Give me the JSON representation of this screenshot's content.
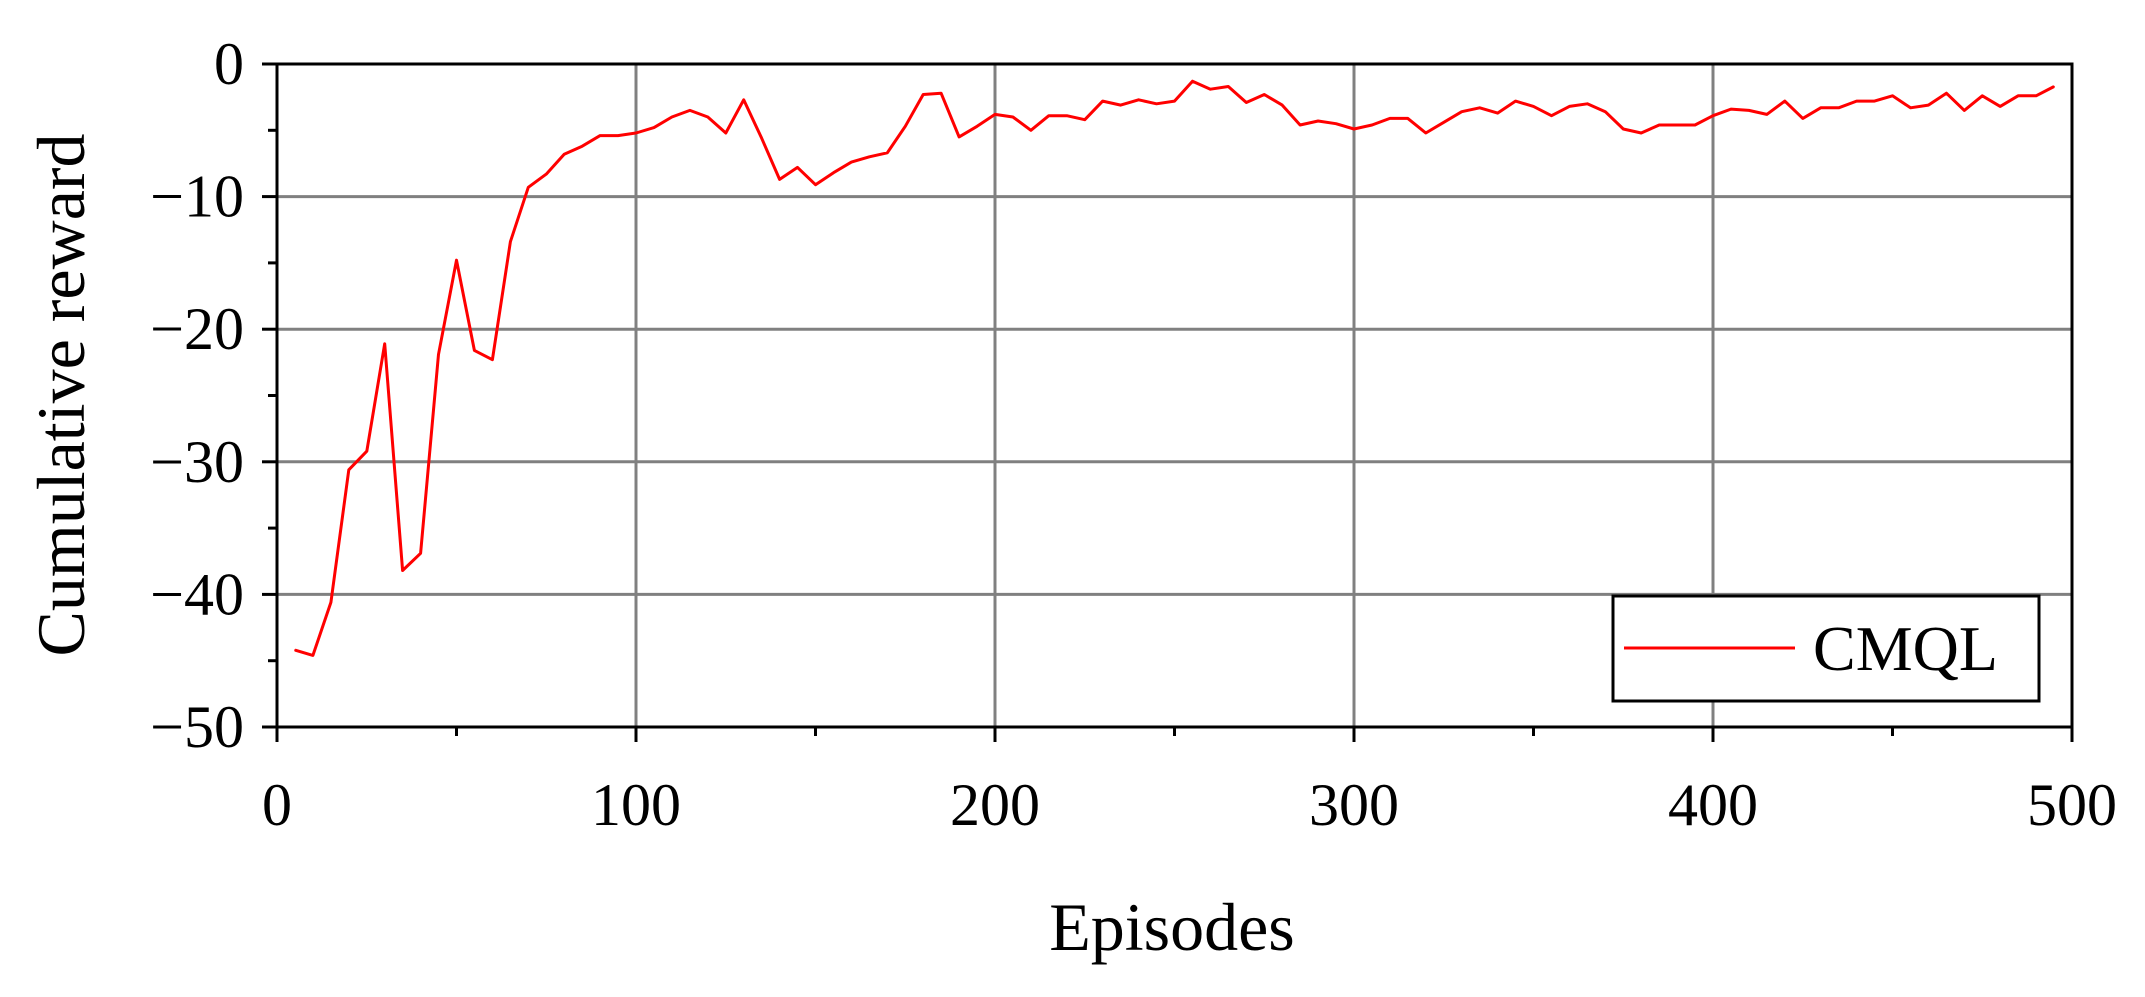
{
  "chart_data": {
    "type": "line",
    "title": "",
    "xlabel": "Episodes",
    "ylabel": "Cumulative reward",
    "xlim": [
      0,
      500
    ],
    "ylim": [
      -50,
      0
    ],
    "xticks": [
      0,
      100,
      200,
      300,
      400,
      500
    ],
    "yticks": [
      0,
      -10,
      -20,
      -30,
      -40,
      -50
    ],
    "xtick_labels": [
      "0",
      "100",
      "200",
      "300",
      "400",
      "500"
    ],
    "ytick_labels": [
      "0",
      "−10",
      "−20",
      "−30",
      "−40",
      "−50"
    ],
    "grid": true,
    "legend": {
      "placement": "bottom-right",
      "entries": [
        "CMQL"
      ]
    },
    "series": [
      {
        "name": "CMQL",
        "color": "#ff0000",
        "x": [
          5,
          10,
          15,
          20,
          25,
          30,
          35,
          40,
          45,
          50,
          55,
          60,
          65,
          70,
          75,
          80,
          85,
          90,
          95,
          100,
          105,
          110,
          115,
          120,
          125,
          130,
          135,
          140,
          145,
          150,
          155,
          160,
          165,
          170,
          175,
          180,
          185,
          190,
          195,
          200,
          205,
          210,
          215,
          220,
          225,
          230,
          235,
          240,
          245,
          250,
          255,
          260,
          265,
          270,
          275,
          280,
          285,
          290,
          295,
          300,
          305,
          310,
          315,
          320,
          325,
          330,
          335,
          340,
          345,
          350,
          355,
          360,
          365,
          370,
          375,
          380,
          385,
          390,
          395,
          400,
          405,
          410,
          415,
          420,
          425,
          430,
          435,
          440,
          445,
          450,
          455,
          460,
          465,
          470,
          475,
          480,
          485,
          490,
          495
        ],
        "y": [
          -44.2,
          -44.6,
          -40.6,
          -30.6,
          -29.2,
          -21.1,
          -38.2,
          -36.9,
          -21.9,
          -14.8,
          -21.6,
          -22.3,
          -13.4,
          -9.3,
          -8.3,
          -6.8,
          -6.2,
          -5.4,
          -5.4,
          -5.2,
          -4.8,
          -4.0,
          -3.5,
          -4.0,
          -5.2,
          -2.7,
          -5.6,
          -8.7,
          -7.8,
          -9.1,
          -8.2,
          -7.4,
          -7.0,
          -6.7,
          -4.7,
          -2.3,
          -2.2,
          -5.5,
          -4.7,
          -3.8,
          -4.0,
          -5.0,
          -3.9,
          -3.9,
          -4.2,
          -2.8,
          -3.1,
          -2.7,
          -3.0,
          -2.8,
          -1.3,
          -1.9,
          -1.7,
          -2.9,
          -2.3,
          -3.1,
          -4.6,
          -4.3,
          -4.5,
          -4.9,
          -4.6,
          -4.1,
          -4.1,
          -5.2,
          -4.4,
          -3.6,
          -3.3,
          -3.7,
          -2.8,
          -3.2,
          -3.9,
          -3.2,
          -3.0,
          -3.6,
          -4.9,
          -5.2,
          -4.6,
          -4.6,
          -4.6,
          -3.9,
          -3.4,
          -3.5,
          -3.8,
          -2.8,
          -4.1,
          -3.3,
          -3.3,
          -2.8,
          -2.8,
          -2.4,
          -3.3,
          -3.1,
          -2.2,
          -3.5,
          -2.4,
          -3.2,
          -2.4,
          -2.4,
          -1.7
        ]
      }
    ]
  }
}
